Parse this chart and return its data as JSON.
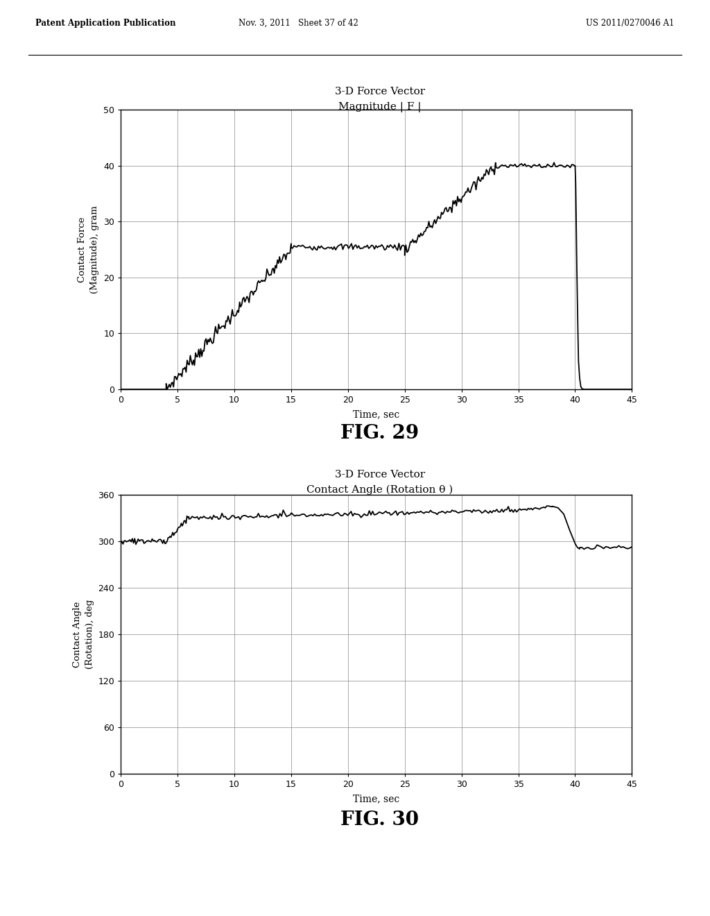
{
  "header_left": "Patent Application Publication",
  "header_mid": "Nov. 3, 2011   Sheet 37 of 42",
  "header_right": "US 2011/0270046 A1",
  "fig29": {
    "title_line1": "3-D Force Vector",
    "title_line2": "Magnitude | F |",
    "xlabel": "Time, sec",
    "ylabel": "Contact Force\n(Magnitude), gram",
    "xlim": [
      0,
      45
    ],
    "ylim": [
      0,
      50
    ],
    "xticks": [
      0,
      5,
      10,
      15,
      20,
      25,
      30,
      35,
      40,
      45
    ],
    "yticks": [
      0,
      10,
      20,
      30,
      40,
      50
    ],
    "fig_label": "FIG. 29"
  },
  "fig30": {
    "title_line1": "3-D Force Vector",
    "title_line2": "Contact Angle (Rotation θ )",
    "xlabel": "Time, sec",
    "ylabel": "Contact Angle\n(Rotation), deg",
    "xlim": [
      0,
      45
    ],
    "ylim": [
      0,
      360
    ],
    "xticks": [
      0,
      5,
      10,
      15,
      20,
      25,
      30,
      35,
      40,
      45
    ],
    "yticks": [
      0,
      60,
      120,
      180,
      240,
      300,
      360
    ],
    "fig_label": "FIG. 30"
  },
  "background_color": "#ffffff",
  "line_color": "#000000",
  "grid_color": "#888888"
}
